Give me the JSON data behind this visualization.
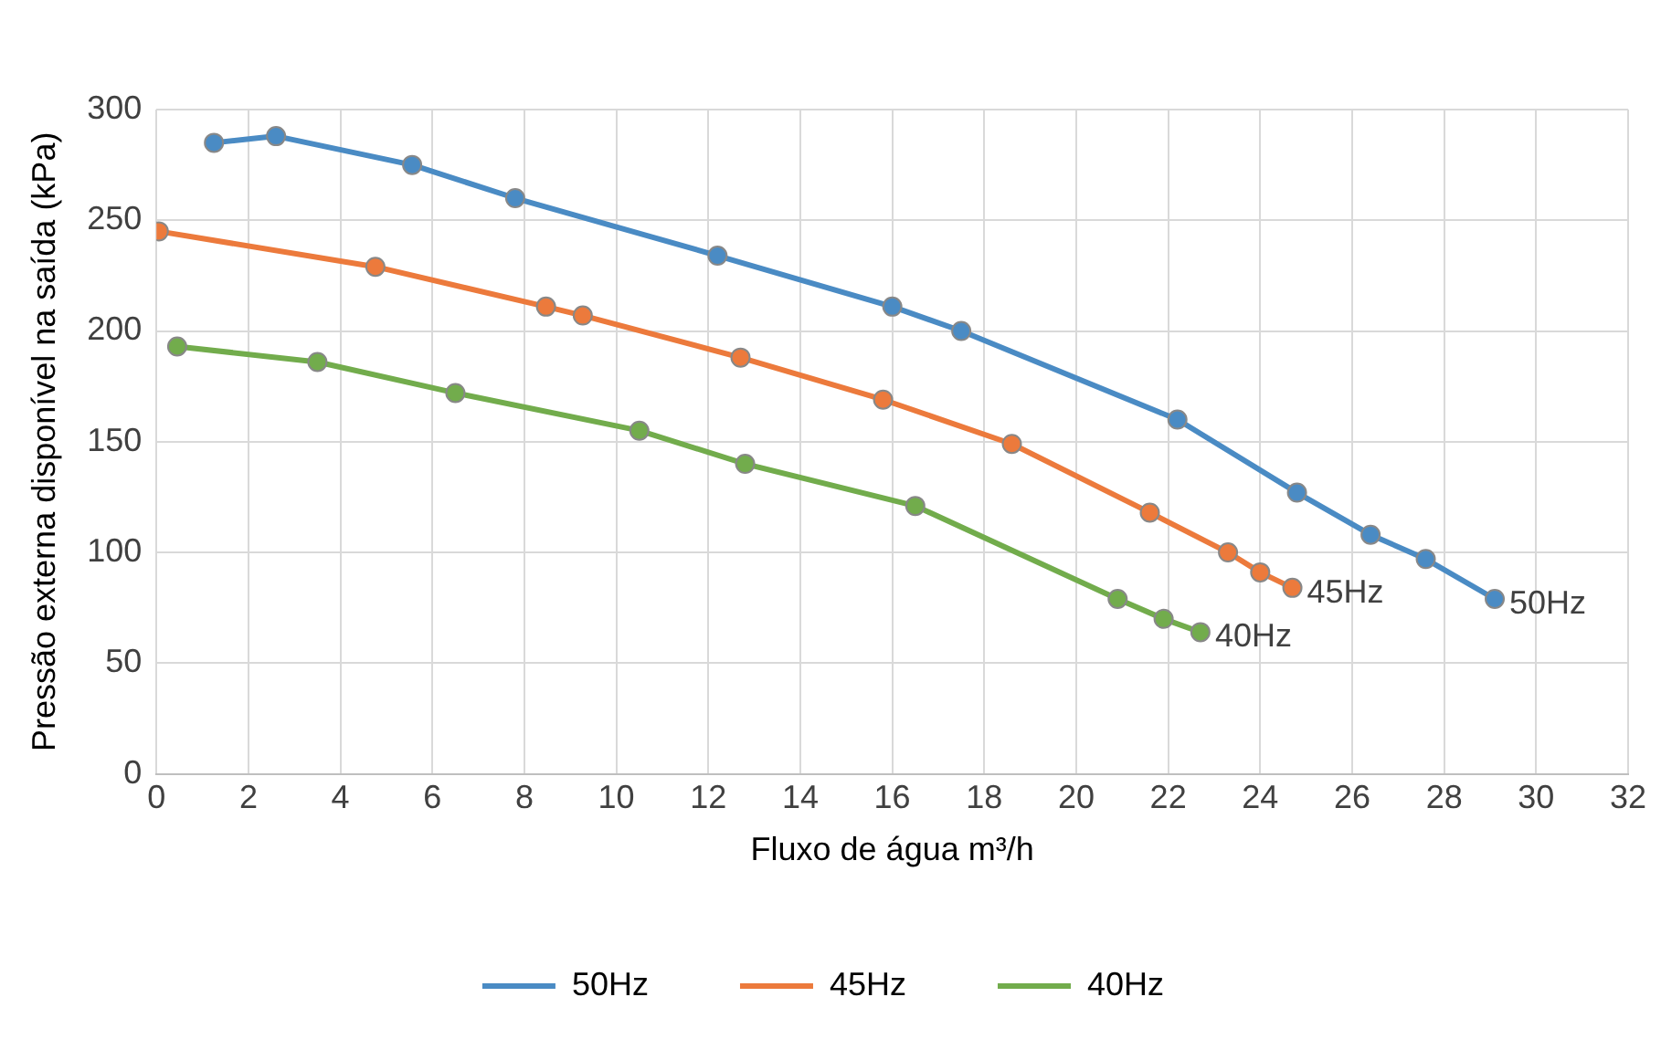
{
  "chart_data": {
    "type": "line",
    "xlabel": "Fluxo de água m³/h",
    "ylabel": "Pressão externa disponível na saída (kPa)",
    "xlim": [
      0,
      32
    ],
    "xticks": [
      0,
      2,
      4,
      6,
      8,
      10,
      12,
      14,
      16,
      18,
      20,
      22,
      24,
      26,
      28,
      30,
      32
    ],
    "ylim": [
      0,
      300
    ],
    "yticks": [
      0,
      50,
      100,
      150,
      200,
      250,
      300
    ],
    "grid": true,
    "legend": "bottom",
    "marker": "circle",
    "line_style": "solid",
    "series": [
      {
        "name": "50Hz",
        "color": "#4a8bc4",
        "x": [
          1.25,
          2.6,
          5.56,
          7.8,
          12.2,
          16.0,
          17.5,
          22.2,
          24.8,
          26.4,
          27.6,
          29.1
        ],
        "values": [
          285,
          288,
          275,
          260,
          234,
          211,
          200,
          160,
          127,
          108,
          97,
          79
        ]
      },
      {
        "name": "45Hz",
        "color": "#ec7a3c",
        "x": [
          0.05,
          4.76,
          8.47,
          9.27,
          12.7,
          15.8,
          18.6,
          21.6,
          23.3,
          24.0,
          24.7
        ],
        "values": [
          245,
          229,
          211,
          207,
          188,
          169,
          149,
          118,
          100,
          91,
          84
        ]
      },
      {
        "name": "40Hz",
        "color": "#72ac4c",
        "x": [
          0.45,
          3.5,
          6.5,
          10.5,
          12.8,
          16.5,
          20.9,
          21.9,
          22.7
        ],
        "values": [
          193,
          186,
          172,
          155,
          140,
          121,
          79,
          70,
          64
        ]
      }
    ],
    "annotations": [
      {
        "text": "50Hz",
        "x": 29.1,
        "y": 79
      },
      {
        "text": "45Hz",
        "x": 24.7,
        "y": 84
      },
      {
        "text": "40Hz",
        "x": 22.7,
        "y": 64
      }
    ]
  }
}
